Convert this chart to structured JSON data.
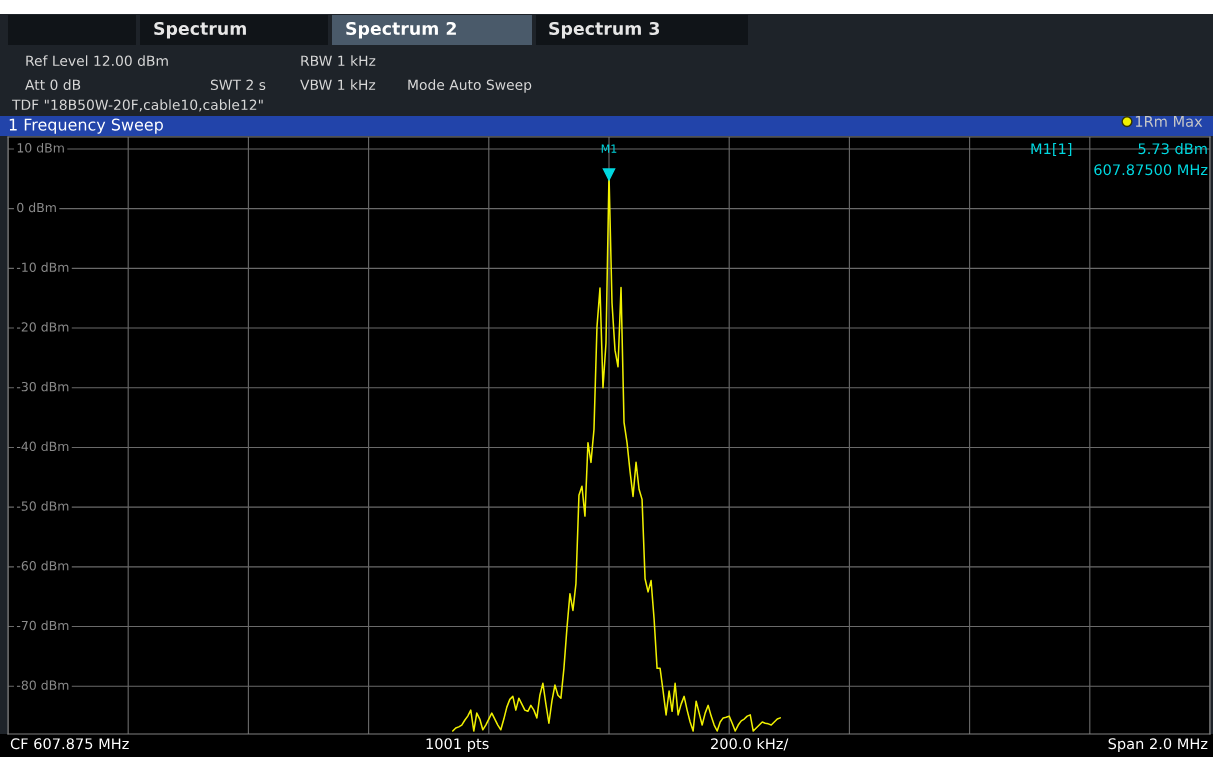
{
  "chart_data": {
    "type": "line",
    "title": "1 Frequency Sweep",
    "annotations": [
      "Spectrum",
      "Spectrum 2",
      "Spectrum 3",
      "Ref Level 12.00 dBm",
      "Att 0 dB",
      "SWT 2 s",
      "RBW 1 kHz",
      "VBW 1 kHz",
      "Mode Auto Sweep",
      "TDF \"18B50W-20F,cable10,cable12\"",
      "M1[1]",
      "5.73 dBm",
      "607.87500 MHz",
      "CF 607.875 MHz",
      "1001 pts",
      "200.0 kHz/",
      "Span 2.0 MHz",
      {
        "text": "M1",
        "y": 5.73
      }
    ],
    "categories": [
      null,
      null,
      null,
      null,
      null,
      null,
      null,
      null,
      null,
      null,
      null,
      null,
      null,
      null,
      null,
      null,
      null,
      null,
      null,
      null,
      null,
      null,
      null,
      null,
      null,
      null,
      null,
      null,
      null,
      null,
      null,
      null,
      null,
      null,
      null,
      null,
      null,
      null,
      null,
      null,
      null,
      null,
      null,
      null,
      null,
      null,
      null,
      null,
      null,
      null,
      null,
      null,
      null,
      null,
      null,
      null,
      null,
      null,
      null,
      null,
      null,
      null,
      null,
      null,
      null,
      null,
      null,
      null,
      null,
      null,
      null,
      null,
      null,
      null,
      null,
      null,
      null,
      null,
      null,
      null,
      null,
      null,
      null,
      null,
      null,
      null,
      null,
      null,
      null,
      null,
      null,
      null,
      null,
      null,
      null,
      null,
      null,
      null,
      null,
      null,
      null,
      null,
      null,
      null,
      null,
      null,
      null,
      null,
      null,
      null,
      null,
      null,
      null,
      null,
      null,
      null,
      null,
      null,
      null,
      null,
      null,
      null,
      null,
      null,
      null,
      null,
      null,
      null,
      null,
      null,
      null,
      null,
      null,
      null,
      null,
      null,
      null,
      null,
      null,
      null,
      null,
      null,
      null,
      null,
      null,
      null,
      null,
      null,
      null,
      null,
      null,
      null,
      null,
      null,
      null,
      null,
      null,
      null,
      null,
      null,
      null,
      null,
      null,
      null,
      null,
      null,
      null,
      null,
      null,
      null,
      null,
      null,
      null,
      null,
      null,
      null,
      null,
      null,
      null,
      null,
      null,
      null,
      null,
      null,
      null,
      null,
      null,
      null,
      null,
      null,
      null,
      null,
      null,
      null,
      null,
      null,
      null,
      null,
      null,
      null,
      null,
      null,
      null,
      null,
      null,
      null,
      null,
      null,
      null,
      null,
      null,
      null,
      null,
      null,
      null,
      null,
      null,
      null,
      null,
      null,
      null,
      null,
      null,
      null,
      null,
      null,
      null,
      null,
      null,
      null,
      null,
      null,
      null,
      null,
      null,
      null,
      null,
      null,
      null,
      null,
      null,
      null,
      null,
      null,
      null,
      null,
      null,
      null,
      null,
      null,
      null,
      null,
      null,
      null,
      null,
      null,
      null,
      null,
      null,
      null,
      null,
      null,
      null,
      null,
      null,
      null,
      null,
      null,
      null,
      null,
      null,
      null,
      null,
      null,
      null,
      null,
      null,
      null,
      null,
      null,
      null,
      null,
      null,
      null,
      null,
      null,
      null,
      null,
      null,
      null,
      null,
      null,
      null,
      null,
      null,
      null,
      null,
      null,
      null,
      null,
      null,
      null,
      null,
      null,
      null,
      null,
      null,
      null,
      null,
      null,
      null,
      null,
      null,
      null,
      null,
      null,
      null,
      null,
      null,
      null,
      null,
      null,
      null,
      null,
      null,
      null,
      null,
      null,
      null,
      null,
      null,
      null,
      null,
      null,
      null,
      null,
      null,
      null,
      null,
      null,
      null,
      null,
      null,
      null,
      null,
      null,
      null,
      null,
      null,
      null,
      null,
      null,
      null,
      null,
      null,
      null,
      null,
      null,
      null,
      null,
      null,
      null,
      null,
      null,
      null,
      null,
      null,
      null,
      null,
      null,
      null,
      null,
      null,
      null,
      null,
      null,
      null,
      null,
      null,
      null,
      null,
      null,
      null,
      null,
      null,
      null,
      null,
      null,
      null,
      null,
      null,
      null,
      null,
      null,
      null,
      null,
      null,
      null,
      null,
      null,
      null
    ],
    "series": [
      {
        "name": "1Rm Max",
        "color": "#f0f000",
        "values": [
          null,
          null,
          null,
          null,
          null,
          null,
          null,
          null,
          null,
          null,
          null,
          null,
          null,
          null,
          null,
          null,
          null,
          null,
          null,
          null,
          null,
          null,
          null,
          null,
          null,
          null,
          null,
          null,
          null,
          null,
          null,
          null,
          null,
          null,
          null,
          null,
          null,
          null,
          null,
          null,
          null,
          null,
          null,
          null,
          null,
          null,
          null,
          null,
          null,
          null,
          null,
          null,
          null,
          null,
          null,
          null,
          null,
          null,
          null,
          null,
          null,
          null,
          null,
          null,
          null,
          null,
          null,
          null,
          null,
          null,
          null,
          null,
          null,
          null,
          null,
          null,
          null,
          null,
          null,
          null,
          null,
          null,
          null,
          null,
          null,
          null,
          null,
          null,
          null,
          null,
          null,
          null,
          null,
          null,
          null,
          null,
          null,
          null,
          null,
          null,
          null,
          null,
          null,
          null,
          null,
          null,
          null,
          null,
          null,
          null,
          null,
          null,
          null,
          null,
          null,
          null,
          null,
          null,
          null,
          null,
          null,
          null,
          null,
          null,
          null,
          null,
          null,
          null,
          null,
          null,
          null,
          null,
          null,
          null,
          null,
          null,
          null,
          null,
          null,
          null,
          null,
          null,
          null,
          null,
          null,
          null,
          null,
          null,
          -87.5,
          -87,
          -86.8,
          -86.5,
          -85.7,
          -85,
          -84,
          -87.5,
          -84.5,
          -85.5,
          -87.3,
          -86.5,
          -85.5,
          -84.5,
          -85.5,
          -86.5,
          -87.3,
          -85.5,
          -83.5,
          -82.2,
          -81.7,
          -84,
          -82,
          -83,
          -84,
          -84.2,
          -83.2,
          -84,
          -85.3,
          -81.5,
          -79.5,
          -83,
          -86.2,
          -82.5,
          -79.8,
          -81.5,
          -82,
          -77,
          -70.3,
          -64.5,
          -67.3,
          -62.8,
          -48,
          -46.5,
          -51.5,
          -39.2,
          -42.5,
          -37,
          -19.8,
          -13.3,
          -30,
          -22.5,
          5.73,
          -15.8,
          -23.7,
          -26.5,
          -13.2,
          -35.8,
          -39.2,
          -44,
          -48.2,
          -42.5,
          -47,
          -48.7,
          -62,
          -64.2,
          -62.3,
          -68.7,
          -77,
          -77,
          -80.8,
          -84.8,
          -80.8,
          -84.2,
          -79.5,
          -84.8,
          -83,
          -81.7,
          -84,
          -86,
          -87.5,
          -82.5,
          -84.5,
          -86.5,
          -84.5,
          -83.2,
          -85,
          -86.5,
          -87.5,
          -86,
          -85.3,
          -85.2,
          -85,
          -86.2,
          -87.5,
          -86.5,
          -85.8,
          -85.5,
          -85,
          -84.8,
          -87.5,
          -87,
          -86.5,
          -86,
          -86.2,
          -86.3,
          -86.5,
          -86,
          -85.5,
          -85.3,
          null,
          null,
          null,
          null,
          null,
          null,
          null,
          null,
          null,
          null,
          null,
          null,
          null,
          null,
          null,
          null,
          null,
          null,
          null,
          null,
          null,
          null,
          null,
          null,
          null,
          null,
          null,
          null,
          null,
          null,
          null,
          null,
          null,
          null,
          null,
          null,
          null,
          null,
          null,
          null,
          null,
          null,
          null,
          null,
          null,
          null,
          null,
          null,
          null,
          null,
          null,
          null,
          null,
          null,
          null,
          null,
          null,
          null,
          null,
          null,
          null,
          null,
          null,
          null,
          null,
          null,
          null,
          null,
          null,
          null,
          null,
          null,
          null,
          null,
          null,
          null,
          null,
          null,
          null,
          null,
          null,
          null,
          null,
          null,
          null,
          null,
          null,
          null,
          null,
          null,
          null,
          null,
          null,
          null,
          null,
          null,
          null,
          null,
          null,
          null,
          null,
          null,
          null,
          null,
          null,
          null,
          null,
          null,
          null,
          null,
          null,
          null,
          null,
          null,
          null,
          null,
          null,
          null,
          null,
          null,
          null,
          null,
          null,
          null,
          null,
          null,
          null,
          null,
          null,
          null,
          null,
          null,
          null,
          null,
          null,
          null,
          null,
          null,
          null,
          null,
          null,
          null,
          null
        ]
      }
    ],
    "ylim": [
      -88,
      12
    ],
    "yticks": [
      {
        "value": 10,
        "label": "10 dBm"
      },
      {
        "value": 0,
        "label": "0 dBm"
      },
      {
        "value": -10,
        "label": "-10 dBm"
      },
      {
        "value": -20,
        "label": "-20 dBm"
      },
      {
        "value": -30,
        "label": "-30 dBm"
      },
      {
        "value": -40,
        "label": "-40 dBm"
      },
      {
        "value": -50,
        "label": "-50 dBm"
      },
      {
        "value": -60,
        "label": "-60 dBm"
      },
      {
        "value": -70,
        "label": "-70 dBm"
      },
      {
        "value": -80,
        "label": "-80 dBm"
      }
    ],
    "grid": true,
    "legend": "top right",
    "tick_labels": "y",
    "marker": "none",
    "line_style": "solid"
  }
}
